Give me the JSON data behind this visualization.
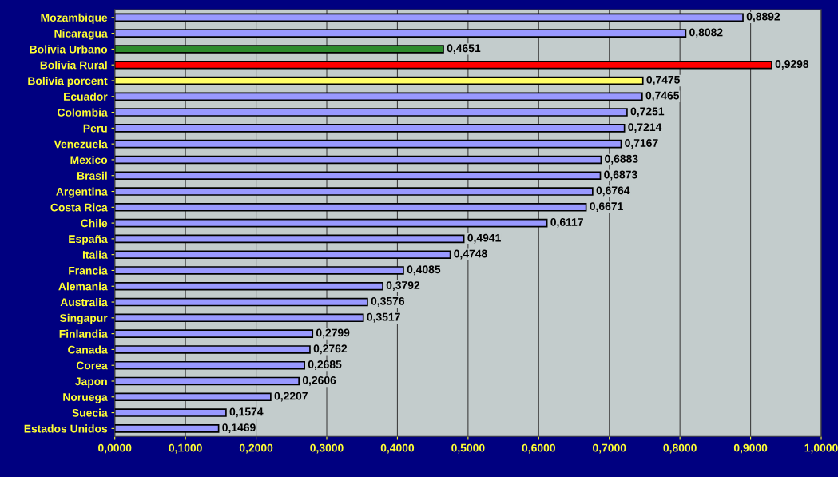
{
  "chart_data": {
    "type": "bar",
    "orientation": "horizontal",
    "grid": "x",
    "categories": [
      "Mozambique",
      "Nicaragua",
      "Bolivia Urbano",
      "Bolivia Rural",
      "Bolivia porcent",
      "Ecuador",
      "Colombia",
      "Peru",
      "Venezuela",
      "Mexico",
      "Brasil",
      "Argentina",
      "Costa Rica",
      "Chile",
      "España",
      "Italia",
      "Francia",
      "Alemania",
      "Australia",
      "Singapur",
      "Finlandia",
      "Canada",
      "Corea",
      "Japon",
      "Noruega",
      "Suecia",
      "Estados Unidos"
    ],
    "values": [
      0.8892,
      0.8082,
      0.4651,
      0.9298,
      0.7475,
      0.7465,
      0.7251,
      0.7214,
      0.7167,
      0.6883,
      0.6873,
      0.6764,
      0.6671,
      0.6117,
      0.4941,
      0.4748,
      0.4085,
      0.3792,
      0.3576,
      0.3517,
      0.2799,
      0.2762,
      0.2685,
      0.2606,
      0.2207,
      0.1574,
      0.1469
    ],
    "value_labels": [
      "0,8892",
      "0,8082",
      "0,4651",
      "0,9298",
      "0,7475",
      "0,7465",
      "0,7251",
      "0,7214",
      "0,7167",
      "0,6883",
      "0,6873",
      "0,6764",
      "0,6671",
      "0,6117",
      "0,4941",
      "0,4748",
      "0,4085",
      "0,3792",
      "0,3576",
      "0,3517",
      "0,2799",
      "0,2762",
      "0,2685",
      "0,2606",
      "0,2207",
      "0,1574",
      "0,1469"
    ],
    "colors": [
      "#9999ff",
      "#9999ff",
      "#2e8b2e",
      "#ff0000",
      "#ffff66",
      "#9999ff",
      "#9999ff",
      "#9999ff",
      "#9999ff",
      "#9999ff",
      "#9999ff",
      "#9999ff",
      "#9999ff",
      "#9999ff",
      "#9999ff",
      "#9999ff",
      "#9999ff",
      "#9999ff",
      "#9999ff",
      "#9999ff",
      "#9999ff",
      "#9999ff",
      "#9999ff",
      "#9999ff",
      "#9999ff",
      "#9999ff",
      "#9999ff"
    ],
    "xlim": [
      0,
      1.0
    ],
    "xticks": [
      {
        "value": 0,
        "label": "0,0000"
      },
      {
        "value": 0.1,
        "label": "0,1000"
      },
      {
        "value": 0.2,
        "label": "0,2000"
      },
      {
        "value": 0.3,
        "label": "0,3000"
      },
      {
        "value": 0.4,
        "label": "0,4000"
      },
      {
        "value": 0.5,
        "label": "0,5000"
      },
      {
        "value": 0.6,
        "label": "0,6000"
      },
      {
        "value": 0.7,
        "label": "0,7000"
      },
      {
        "value": 0.8,
        "label": "0,8000"
      },
      {
        "value": 0.9,
        "label": "0,9000"
      },
      {
        "value": 1.0,
        "label": "1,0000"
      }
    ]
  }
}
